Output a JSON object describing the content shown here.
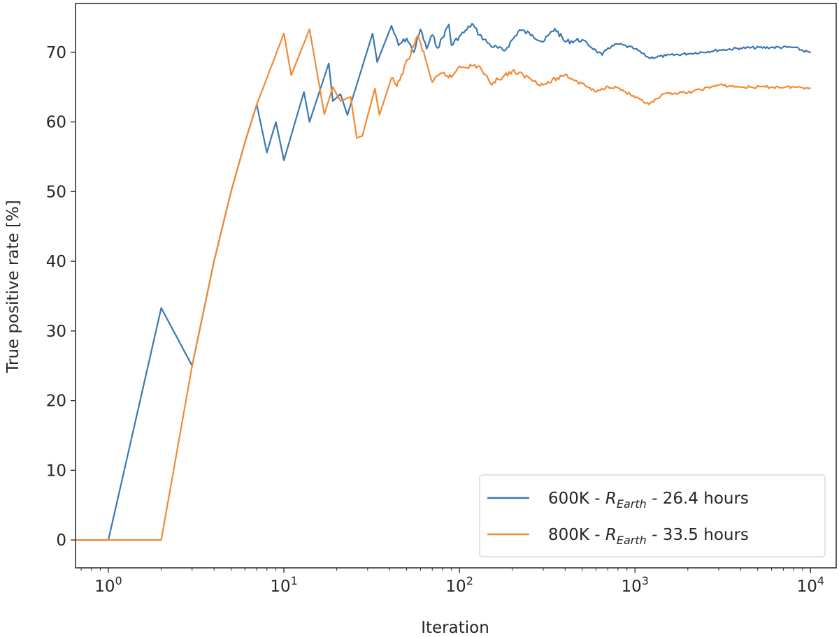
{
  "chart_data": {
    "type": "line",
    "xscale": "log",
    "xlim": [
      0.65,
      14000
    ],
    "ylim": [
      -4,
      77
    ],
    "xlabel": "Iteration",
    "ylabel": "True positive rate [%]",
    "grid": false,
    "legend_position": "lower right",
    "x_ticks": [
      {
        "value": 1,
        "base": "10",
        "exp": "0"
      },
      {
        "value": 10,
        "base": "10",
        "exp": "1"
      },
      {
        "value": 100,
        "base": "10",
        "exp": "2"
      },
      {
        "value": 1000,
        "base": "10",
        "exp": "3"
      },
      {
        "value": 10000,
        "base": "10",
        "exp": "4"
      }
    ],
    "y_ticks": [
      {
        "value": 0,
        "label": "0"
      },
      {
        "value": 10,
        "label": "10"
      },
      {
        "value": 20,
        "label": "20"
      },
      {
        "value": 30,
        "label": "30"
      },
      {
        "value": 40,
        "label": "40"
      },
      {
        "value": 50,
        "label": "50"
      },
      {
        "value": 60,
        "label": "60"
      },
      {
        "value": 70,
        "label": "70"
      }
    ],
    "series": [
      {
        "name": "600K - R_Earth - 26.4 hours",
        "legend": {
          "prefix": "600K - ",
          "symbol": "R",
          "subscript": "Earth",
          "suffix": " - 26.4 hours"
        },
        "color": "#3a78b3",
        "points": [
          [
            0.65,
            0
          ],
          [
            1,
            0
          ],
          [
            2,
            33.3
          ],
          [
            3,
            25
          ],
          [
            4,
            40
          ],
          [
            5,
            50
          ],
          [
            6,
            57.1
          ],
          [
            7,
            62.5
          ],
          [
            8,
            55.6
          ],
          [
            9,
            60
          ],
          [
            10,
            54.5
          ],
          [
            13,
            64.3
          ],
          [
            14,
            60
          ],
          [
            18,
            68.4
          ],
          [
            19,
            63
          ],
          [
            21,
            64
          ],
          [
            23,
            61
          ],
          [
            32,
            72.7
          ],
          [
            34,
            68.6
          ],
          [
            41,
            73.8
          ],
          [
            45,
            71
          ],
          [
            50,
            72
          ],
          [
            55,
            70
          ],
          [
            60,
            73.3
          ],
          [
            65,
            70.5
          ],
          [
            70,
            72.5
          ],
          [
            75,
            70.6
          ],
          [
            87,
            74
          ],
          [
            90,
            71
          ],
          [
            100,
            72.3
          ],
          [
            110,
            73.2
          ],
          [
            118,
            74.1
          ],
          [
            130,
            72.5
          ],
          [
            150,
            71
          ],
          [
            180,
            70.2
          ],
          [
            220,
            73.2
          ],
          [
            260,
            72.5
          ],
          [
            300,
            71.5
          ],
          [
            350,
            73.4
          ],
          [
            400,
            71.5
          ],
          [
            500,
            71.8
          ],
          [
            600,
            70.2
          ],
          [
            650,
            69.6
          ],
          [
            700,
            70.6
          ],
          [
            800,
            71.2
          ],
          [
            1000,
            70.5
          ],
          [
            1200,
            69.2
          ],
          [
            1500,
            69.5
          ],
          [
            2000,
            69.8
          ],
          [
            3000,
            70.3
          ],
          [
            4000,
            70.6
          ],
          [
            6000,
            70.7
          ],
          [
            8000,
            70.7
          ],
          [
            10000,
            69.9
          ]
        ]
      },
      {
        "name": "800K - R_Earth - 33.5 hours",
        "legend": {
          "prefix": "800K - ",
          "symbol": "R",
          "subscript": "Earth",
          "suffix": " - 33.5 hours"
        },
        "color": "#f28a34",
        "points": [
          [
            0.65,
            0
          ],
          [
            1,
            0
          ],
          [
            2,
            0
          ],
          [
            3,
            25
          ],
          [
            4,
            40
          ],
          [
            5,
            50
          ],
          [
            6,
            57.1
          ],
          [
            7,
            62.5
          ],
          [
            10,
            72.7
          ],
          [
            11,
            66.7
          ],
          [
            14,
            73.3
          ],
          [
            17,
            61.1
          ],
          [
            19,
            65
          ],
          [
            21,
            63
          ],
          [
            24,
            63.6
          ],
          [
            26,
            57.7
          ],
          [
            28,
            58
          ],
          [
            33,
            64.8
          ],
          [
            35,
            61
          ],
          [
            41,
            66.3
          ],
          [
            44,
            65.1
          ],
          [
            58,
            72.4
          ],
          [
            65,
            68.5
          ],
          [
            70,
            65.7
          ],
          [
            80,
            67
          ],
          [
            90,
            66.4
          ],
          [
            100,
            68
          ],
          [
            130,
            68
          ],
          [
            150,
            65.5
          ],
          [
            200,
            67.3
          ],
          [
            250,
            66.3
          ],
          [
            300,
            65.3
          ],
          [
            400,
            66.8
          ],
          [
            500,
            65.5
          ],
          [
            600,
            64.3
          ],
          [
            700,
            65.1
          ],
          [
            800,
            64.9
          ],
          [
            1000,
            63.5
          ],
          [
            1200,
            62.5
          ],
          [
            1500,
            64.1
          ],
          [
            2000,
            64.2
          ],
          [
            3000,
            65.3
          ],
          [
            4000,
            65
          ],
          [
            6000,
            65
          ],
          [
            8000,
            65
          ],
          [
            10000,
            64.9
          ]
        ]
      }
    ]
  }
}
